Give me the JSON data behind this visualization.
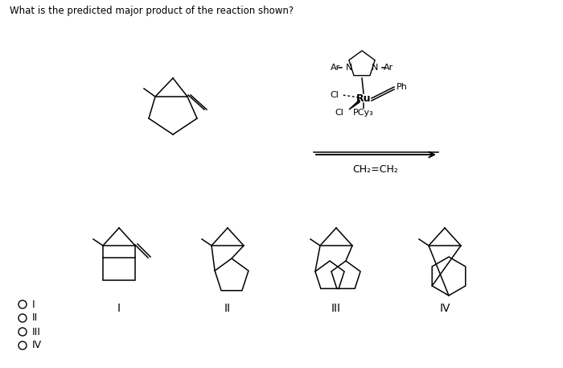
{
  "title": "What is the predicted major product of the reaction shown?",
  "bg_color": "#ffffff",
  "text_color": "#000000",
  "options": [
    "I",
    "II",
    "III",
    "IV"
  ]
}
